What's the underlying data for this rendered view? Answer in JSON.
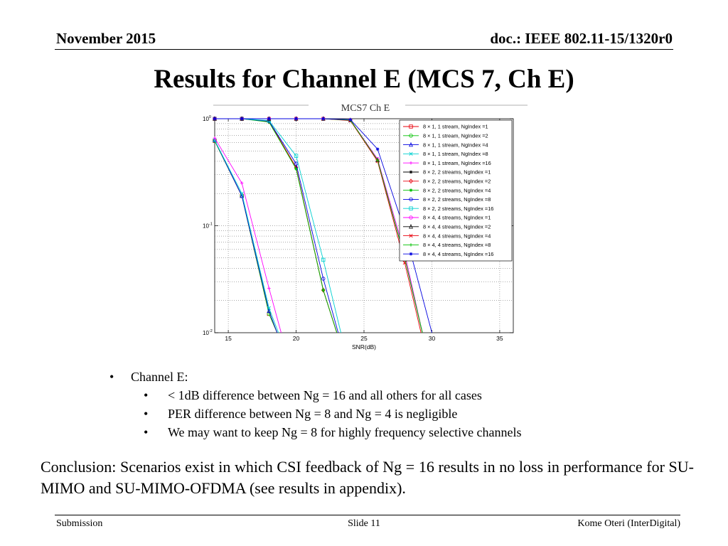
{
  "header": {
    "date": "November 2015",
    "doc": "doc.: IEEE 802.11-15/1320r0"
  },
  "slide_title": "Results for Channel E (MCS 7, Ch E)",
  "chart_data": {
    "type": "line",
    "title": "MCS7 Ch E",
    "xlabel": "SNR(dB)",
    "ylabel": "",
    "y_scale": "log",
    "xlim": [
      14,
      36
    ],
    "ylim": [
      0.01,
      1
    ],
    "x_ticks": [
      15,
      20,
      25,
      30,
      35
    ],
    "y_ticks": [
      {
        "value": 1,
        "base": "10",
        "exp": "0"
      },
      {
        "value": 0.1,
        "base": "10",
        "exp": "-1"
      },
      {
        "value": 0.01,
        "base": "10",
        "exp": "-2"
      }
    ],
    "grid": true,
    "legend_position": "top-right",
    "series": [
      {
        "name": "8 × 1, 1 stream, NgIndex =1",
        "color": "#e8000b",
        "marker": "s",
        "x": [
          14,
          16,
          18,
          18.6
        ],
        "y": [
          0.62,
          0.19,
          0.015,
          0.01
        ]
      },
      {
        "name": "8 × 1, 1 stream, NgIndex =2",
        "color": "#00c000",
        "marker": "o",
        "x": [
          14,
          16,
          18,
          18.6
        ],
        "y": [
          0.62,
          0.19,
          0.015,
          0.01
        ]
      },
      {
        "name": "8 × 1, 1 stream, NgIndex =4",
        "color": "#0000e0",
        "marker": "^",
        "x": [
          14,
          16,
          18,
          18.6
        ],
        "y": [
          0.63,
          0.19,
          0.016,
          0.01
        ]
      },
      {
        "name": "8 × 1, 1 stream, NgIndex =8",
        "color": "#00d0d0",
        "marker": "x",
        "x": [
          14,
          16,
          18,
          18.7
        ],
        "y": [
          0.63,
          0.2,
          0.017,
          0.01
        ]
      },
      {
        "name": "8 × 1, 1 stream, NgIndex =16",
        "color": "#ff00ff",
        "marker": "+",
        "x": [
          14,
          16,
          18,
          18.9
        ],
        "y": [
          0.66,
          0.25,
          0.026,
          0.01
        ]
      },
      {
        "name": "8 × 2, 2 streams, NgIndex =1",
        "color": "#000000",
        "marker": "*",
        "x": [
          14,
          16,
          18,
          20,
          22,
          23
        ],
        "y": [
          1,
          1,
          0.95,
          0.35,
          0.025,
          0.01
        ]
      },
      {
        "name": "8 × 2, 2 streams, NgIndex =2",
        "color": "#e8000b",
        "marker": "D",
        "x": [
          14,
          16,
          18,
          20,
          22,
          23
        ],
        "y": [
          1,
          1,
          0.94,
          0.35,
          0.025,
          0.01
        ]
      },
      {
        "name": "8 × 2, 2 streams, NgIndex =4",
        "color": "#00c000",
        "marker": "*",
        "x": [
          14,
          16,
          18,
          20,
          22,
          23
        ],
        "y": [
          1,
          1,
          0.93,
          0.34,
          0.025,
          0.01
        ]
      },
      {
        "name": "8 × 2, 2 streams, NgIndex =8",
        "color": "#0000e0",
        "marker": "o",
        "x": [
          14,
          16,
          18,
          20,
          22,
          23.1
        ],
        "y": [
          1,
          1,
          0.95,
          0.38,
          0.032,
          0.01
        ]
      },
      {
        "name": "8 × 2, 2 streams, NgIndex =16",
        "color": "#00d0d0",
        "marker": "s",
        "x": [
          14,
          16,
          18,
          20,
          22,
          23.3
        ],
        "y": [
          1,
          1,
          0.96,
          0.45,
          0.048,
          0.01
        ]
      },
      {
        "name": "8 × 4, 4 streams, NgIndex =1",
        "color": "#ff00ff",
        "marker": "o",
        "x": [
          14,
          16,
          18,
          20,
          22,
          24,
          26,
          28,
          29.3
        ],
        "y": [
          1,
          1,
          1,
          1,
          1,
          0.97,
          0.42,
          0.055,
          0.01
        ]
      },
      {
        "name": "8 × 4, 4 streams, NgIndex =2",
        "color": "#000000",
        "marker": "^",
        "x": [
          14,
          16,
          18,
          20,
          22,
          24,
          26,
          28,
          29.3
        ],
        "y": [
          1,
          1,
          1,
          1,
          1,
          0.97,
          0.41,
          0.05,
          0.01
        ]
      },
      {
        "name": "8 × 4, 4 streams, NgIndex =4",
        "color": "#e8000b",
        "marker": "x",
        "x": [
          14,
          16,
          18,
          20,
          22,
          24,
          26,
          28,
          29.2
        ],
        "y": [
          1,
          1,
          1,
          1,
          1,
          0.96,
          0.4,
          0.045,
          0.01
        ]
      },
      {
        "name": "8 × 4, 4 streams, NgIndex =8",
        "color": "#00c000",
        "marker": "+",
        "x": [
          14,
          16,
          18,
          20,
          22,
          24,
          26,
          28,
          29.3
        ],
        "y": [
          1,
          1,
          1,
          1,
          1,
          0.97,
          0.41,
          0.05,
          0.01
        ]
      },
      {
        "name": "8 × 4, 4 streams, NgIndex =16",
        "color": "#0000e0",
        "marker": "*",
        "x": [
          14,
          16,
          18,
          20,
          22,
          24,
          26,
          28,
          30
        ],
        "y": [
          1,
          1,
          1,
          1,
          1,
          0.98,
          0.52,
          0.09,
          0.01
        ]
      }
    ]
  },
  "bullets": {
    "level1": "Channel E:",
    "level2": [
      "< 1dB difference between Ng = 16 and all others for all cases",
      "PER difference between Ng = 8 and Ng = 4 is negligible",
      "We may want to keep Ng = 8 for highly frequency selective channels"
    ]
  },
  "conclusion": "Conclusion: Scenarios exist in which CSI feedback of Ng = 16 results in no loss in performance for SU-MIMO and SU-MIMO-OFDMA (see results in appendix).",
  "footer": {
    "left": "Submission",
    "center": "Slide 11",
    "right": "Kome Oteri (InterDigital)"
  }
}
